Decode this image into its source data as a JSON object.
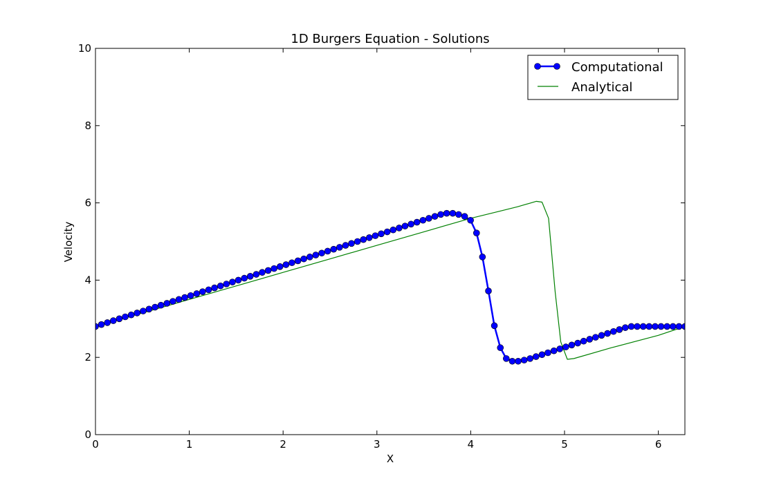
{
  "chart_data": {
    "type": "line",
    "title": "1D Burgers Equation - Solutions",
    "xlabel": "X",
    "ylabel": "Velocity",
    "xlim": [
      0,
      6.283185
    ],
    "ylim": [
      0,
      10
    ],
    "xticks": [
      0,
      1,
      2,
      3,
      4,
      5,
      6
    ],
    "xtick_labels": [
      "0",
      "1",
      "2",
      "3",
      "4",
      "5",
      "6"
    ],
    "yticks": [
      0,
      2,
      4,
      6,
      8,
      10
    ],
    "ytick_labels": [
      "0",
      "2",
      "4",
      "6",
      "8",
      "10"
    ],
    "grid": false,
    "legend": "top-right",
    "series": [
      {
        "name": "Computational",
        "color": "#0000ff",
        "marker": "circle",
        "x": [
          0,
          0.063,
          0.127,
          0.19,
          0.254,
          0.317,
          0.381,
          0.444,
          0.508,
          0.571,
          0.635,
          0.698,
          0.762,
          0.825,
          0.889,
          0.952,
          1.015,
          1.079,
          1.142,
          1.206,
          1.269,
          1.333,
          1.396,
          1.46,
          1.523,
          1.587,
          1.65,
          1.714,
          1.777,
          1.841,
          1.904,
          1.967,
          2.031,
          2.094,
          2.158,
          2.221,
          2.285,
          2.348,
          2.412,
          2.475,
          2.539,
          2.602,
          2.666,
          2.729,
          2.793,
          2.856,
          2.919,
          2.983,
          3.046,
          3.11,
          3.173,
          3.237,
          3.3,
          3.364,
          3.427,
          3.491,
          3.554,
          3.618,
          3.681,
          3.744,
          3.808,
          3.871,
          3.935,
          3.998,
          4.062,
          4.125,
          4.189,
          4.252,
          4.316,
          4.379,
          4.443,
          4.506,
          4.57,
          4.633,
          4.696,
          4.76,
          4.823,
          4.887,
          4.95,
          5.014,
          5.077,
          5.141,
          5.204,
          5.268,
          5.331,
          5.395,
          5.458,
          5.522,
          5.585,
          5.648,
          5.712,
          5.775,
          5.839,
          5.902,
          5.966,
          6.029,
          6.093,
          6.156,
          6.22,
          6.283
        ],
        "y": [
          2.8,
          2.85,
          2.9,
          2.95,
          3.0,
          3.05,
          3.1,
          3.15,
          3.2,
          3.25,
          3.3,
          3.35,
          3.4,
          3.45,
          3.5,
          3.55,
          3.6,
          3.65,
          3.7,
          3.75,
          3.8,
          3.85,
          3.9,
          3.95,
          4.0,
          4.05,
          4.1,
          4.15,
          4.2,
          4.25,
          4.3,
          4.35,
          4.4,
          4.45,
          4.5,
          4.55,
          4.6,
          4.65,
          4.7,
          4.75,
          4.8,
          4.85,
          4.9,
          4.95,
          5.0,
          5.05,
          5.1,
          5.15,
          5.2,
          5.25,
          5.3,
          5.35,
          5.4,
          5.45,
          5.5,
          5.55,
          5.6,
          5.65,
          5.7,
          5.73,
          5.73,
          5.7,
          5.65,
          5.55,
          5.22,
          4.6,
          3.72,
          2.82,
          2.25,
          1.97,
          1.9,
          1.9,
          1.93,
          1.97,
          2.02,
          2.07,
          2.12,
          2.17,
          2.22,
          2.27,
          2.32,
          2.37,
          2.42,
          2.47,
          2.52,
          2.57,
          2.62,
          2.67,
          2.72,
          2.77,
          2.8,
          2.8,
          2.8,
          2.8,
          2.8,
          2.8,
          2.8,
          2.8,
          2.8,
          2.8
        ]
      },
      {
        "name": "Analytical",
        "color": "#008000",
        "marker": "none",
        "x": [
          0,
          0.5,
          1.0,
          1.5,
          2.0,
          2.5,
          3.0,
          3.5,
          4.0,
          4.3,
          4.5,
          4.7,
          4.76,
          4.83,
          4.9,
          4.96,
          5.03,
          5.1,
          5.5,
          6.0,
          6.283
        ],
        "y": [
          2.8,
          3.15,
          3.5,
          3.85,
          4.2,
          4.55,
          4.9,
          5.25,
          5.6,
          5.78,
          5.9,
          6.04,
          6.02,
          5.6,
          3.7,
          2.4,
          1.95,
          1.97,
          2.25,
          2.57,
          2.8
        ]
      }
    ]
  }
}
